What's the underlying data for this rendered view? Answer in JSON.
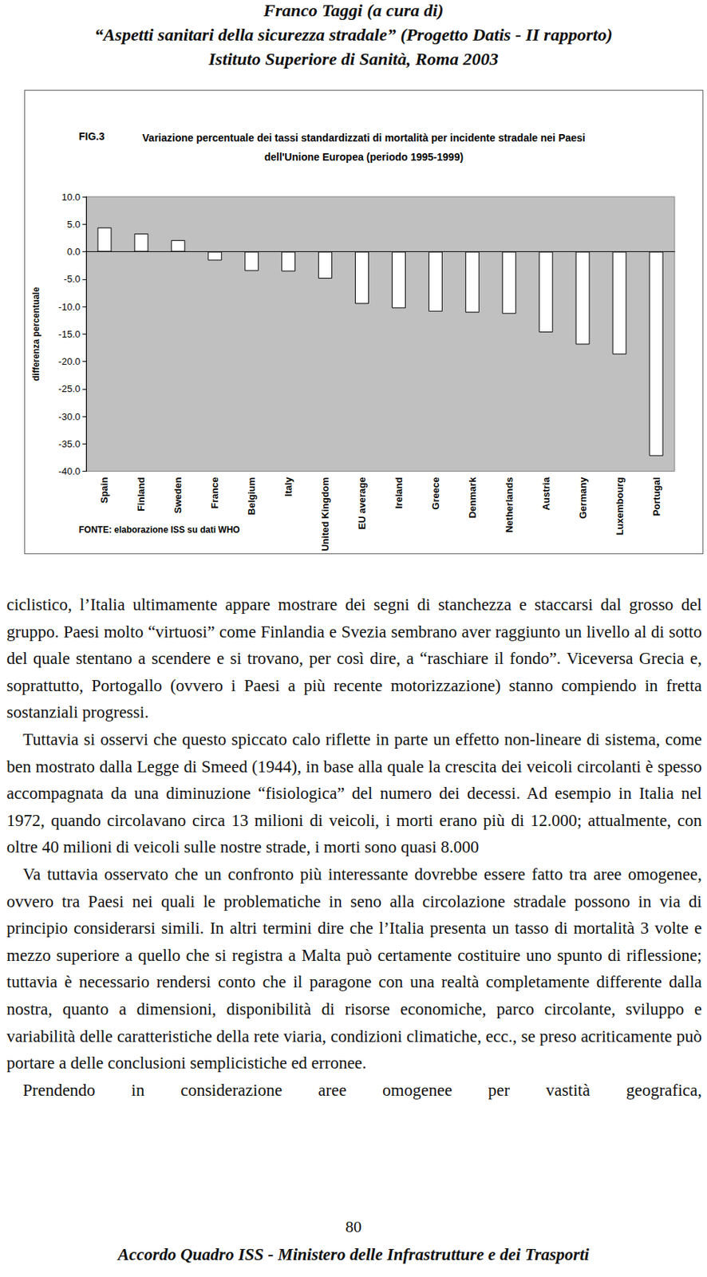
{
  "header": {
    "lines": [
      "Franco Taggi (a cura di)",
      "“Aspetti sanitari della sicurezza stradale” (Progetto Datis - II rapporto)",
      "Istituto Superiore di Sanità, Roma 2003"
    ]
  },
  "figure": {
    "label": "FIG.3",
    "source": "FONTE: elaborazione ISS su dati WHO"
  },
  "chart_data": {
    "type": "bar",
    "title": "Variazione percentuale dei tassi standardizzati di mortalità per incidente stradale nei Paesi\ndell'Unione Europea (periodo 1995-1999)",
    "y_label": "differenza percentuale",
    "categories": [
      "Spain",
      "Finland",
      "Sweden",
      "France",
      "Belgium",
      "Italy",
      "United Kingdom",
      "EU average",
      "Ireland",
      "Greece",
      "Denmark",
      "Netherlands",
      "Austria",
      "Germany",
      "Luxembourg",
      "Portugal"
    ],
    "values": [
      4.4,
      3.3,
      2.1,
      -1.6,
      -3.5,
      -3.6,
      -4.9,
      -9.5,
      -10.3,
      -10.9,
      -11.1,
      -11.3,
      -14.7,
      -16.9,
      -18.7,
      -37.2
    ],
    "color": "#ffffff",
    "ylim": [
      -40,
      10
    ],
    "yticks": [
      {
        "value": -40,
        "label": "-40.0"
      },
      {
        "value": -35,
        "label": "-35.0"
      },
      {
        "value": -30,
        "label": "-30.0"
      },
      {
        "value": -25,
        "label": "-25.0"
      },
      {
        "value": -20,
        "label": "-20.0"
      },
      {
        "value": -15,
        "label": "-15.0"
      },
      {
        "value": -10,
        "label": "-10.0"
      },
      {
        "value": -5,
        "label": "-5.0"
      },
      {
        "value": 0,
        "label": "0.0"
      },
      {
        "value": 5,
        "label": "5.0"
      },
      {
        "value": 10,
        "label": "10.0"
      }
    ],
    "grid": false
  },
  "body": {
    "paragraphs": [
      "ciclistico, l’Italia ultimamente appare mostrare dei segni di stanchezza e staccarsi dal grosso del gruppo. Paesi molto “virtuosi” come Finlandia e Svezia sembrano aver raggiunto un livello al di sotto del quale stentano a scendere e si trovano, per così dire, a “raschiare il fondo”. Viceversa Grecia e, soprattutto, Portogallo (ovvero i Paesi a più recente motorizzazione) stanno compiendo in fretta sostanziali progressi.",
      "Tuttavia si osservi che questo spiccato calo riflette in parte un effetto non-lineare di sistema, come ben mostrato dalla Legge di Smeed (1944), in base alla quale la crescita dei veicoli circolanti è spesso accompagnata da una diminuzione “fisiologica” del numero dei decessi. Ad esempio in Italia nel 1972, quando circolavano circa 13 milioni di veicoli, i morti erano più di 12.000; attualmente, con oltre 40 milioni di veicoli sulle nostre strade, i morti sono quasi 8.000",
      "Va tuttavia osservato che un confronto più interessante dovrebbe essere fatto tra aree omogenee, ovvero tra Paesi nei quali le problematiche in seno alla circolazione stradale possono in via di principio considerarsi simili. In altri termini dire che l’Italia presenta un tasso di mortalità 3 volte e mezzo superiore a quello che si registra a Malta può certamente costituire uno spunto di riflessione; tuttavia è necessario rendersi conto che il paragone con una realtà completamente differente dalla nostra, quanto a dimensioni, disponibilità di risorse economiche, parco circolante, sviluppo e variabilità delle caratteristiche della rete viaria, condizioni climatiche, ecc., se preso acriticamente può portare a delle conclusioni semplicistiche ed erronee.",
      "Prendendo in considerazione aree omogenee per vastità geografica,"
    ]
  },
  "page_number": "80",
  "footer": "Accordo Quadro ISS - Ministero delle Infrastrutture e dei Trasporti"
}
